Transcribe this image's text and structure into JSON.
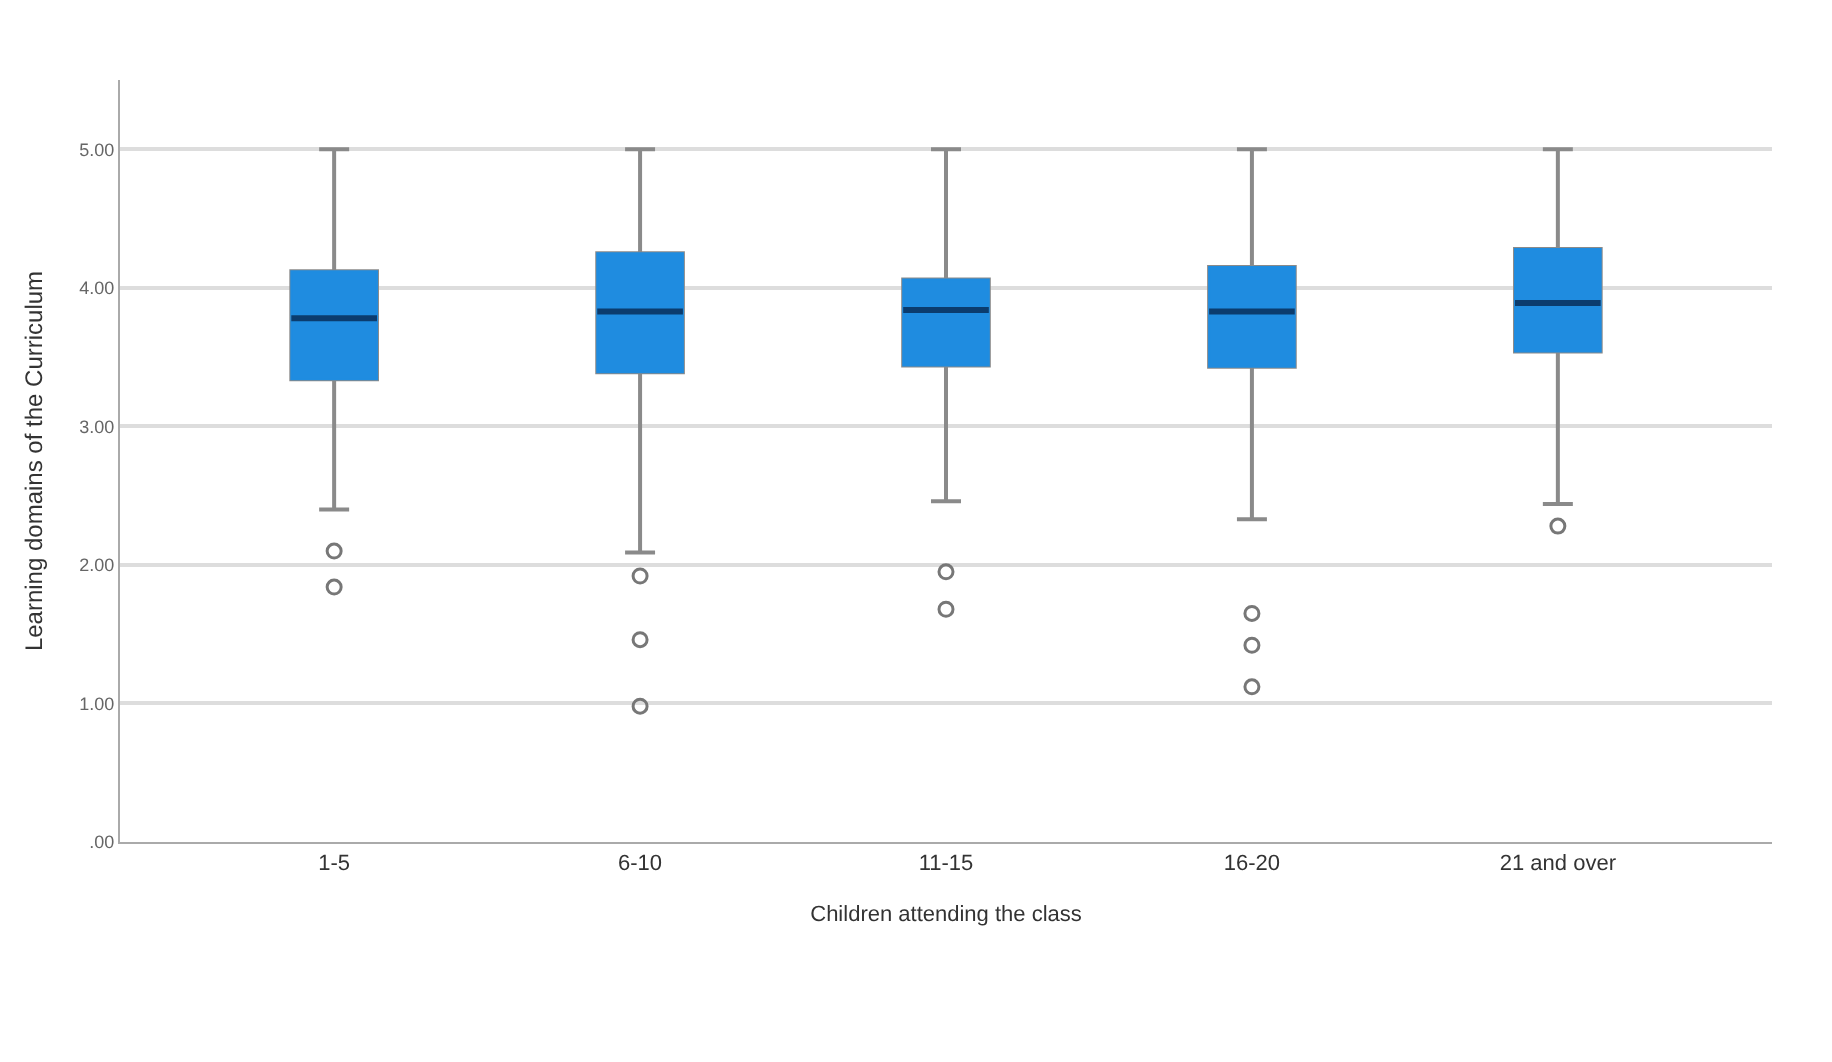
{
  "chart_data": {
    "type": "box",
    "xlabel": "Children attending the class",
    "ylabel": "Learning domains of the Curriculum",
    "categories": [
      "1-5",
      "6-10",
      "11-15",
      "16-20",
      "21 and over"
    ],
    "color": "#1f8ce0",
    "boxes": [
      {
        "low": 2.4,
        "q1": 3.34,
        "median": 3.78,
        "q3": 4.12,
        "high": 5.0,
        "outliers": [
          2.1,
          1.84
        ]
      },
      {
        "low": 2.09,
        "q1": 3.39,
        "median": 3.83,
        "q3": 4.25,
        "high": 5.0,
        "outliers": [
          1.92,
          1.46,
          0.98
        ]
      },
      {
        "low": 2.46,
        "q1": 3.44,
        "median": 3.84,
        "q3": 4.06,
        "high": 5.0,
        "outliers": [
          1.95,
          1.68
        ]
      },
      {
        "low": 2.33,
        "q1": 3.43,
        "median": 3.83,
        "q3": 4.15,
        "high": 5.0,
        "outliers": [
          1.65,
          1.42,
          1.12
        ]
      },
      {
        "low": 2.44,
        "q1": 3.54,
        "median": 3.89,
        "q3": 4.28,
        "high": 5.0,
        "outliers": [
          2.28
        ]
      }
    ],
    "ylim": [
      0,
      5.5
    ],
    "yticks": [
      {
        "value": 0,
        "label": ".00"
      },
      {
        "value": 1,
        "label": "1.00"
      },
      {
        "value": 2,
        "label": "2.00"
      },
      {
        "value": 3,
        "label": "3.00"
      },
      {
        "value": 4,
        "label": "4.00"
      },
      {
        "value": 5,
        "label": "5.00"
      }
    ],
    "grid": "y",
    "marker": "circle"
  }
}
